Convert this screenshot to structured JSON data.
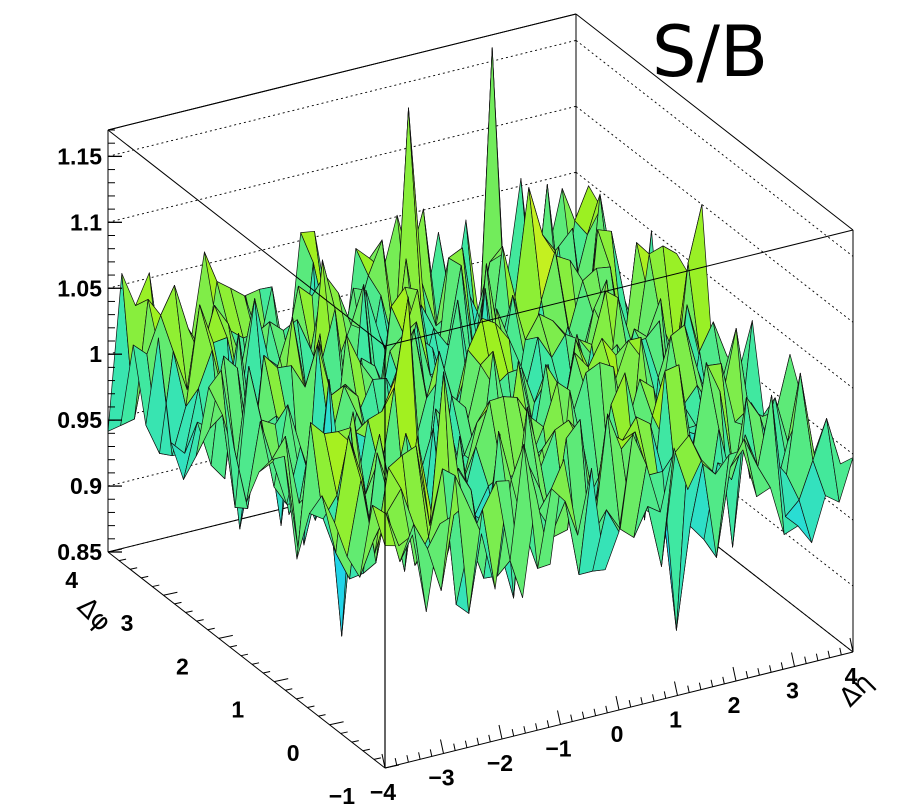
{
  "chart_data": {
    "type": "surface",
    "title": "S/B",
    "xlabel": "Δη",
    "ylabel": "Δφ",
    "x_range": [
      -4,
      4
    ],
    "y_range": [
      -1,
      4
    ],
    "z_range": [
      0.85,
      1.17
    ],
    "grid": true,
    "x_ticks": [
      "−4",
      "−3",
      "−2",
      "−1",
      "0",
      "1",
      "2",
      "3",
      "4"
    ],
    "y_ticks": [
      "−1",
      "0",
      "1",
      "2",
      "3",
      "4"
    ],
    "z_ticks": [
      "0.85",
      "0.9",
      "0.95",
      "1",
      "1.05",
      "1.1",
      "1.15"
    ],
    "color_scale": [
      "#2020d0",
      "#1a7ff0",
      "#20d8e8",
      "#40e8a0",
      "#9df020",
      "#e8f020",
      "#f5a020",
      "#e83010"
    ],
    "grid_size": {
      "nx": 34,
      "ny": 22
    },
    "z_mean": 1.0,
    "z_noise_amplitude": 0.06,
    "notable_peaks": [
      {
        "x": 2.4,
        "y": 3.8,
        "z": 1.17
      },
      {
        "x": 0.7,
        "y": 3.6,
        "z": 1.15
      },
      {
        "x": -2.3,
        "y": -0.3,
        "z": 1.11
      },
      {
        "x": 4.0,
        "y": 1.8,
        "z": 1.1
      }
    ],
    "notable_dips": [
      {
        "x": -2.5,
        "y": 1.2,
        "z": 0.86
      },
      {
        "x": 1.5,
        "y": -0.6,
        "z": 0.88
      }
    ]
  }
}
